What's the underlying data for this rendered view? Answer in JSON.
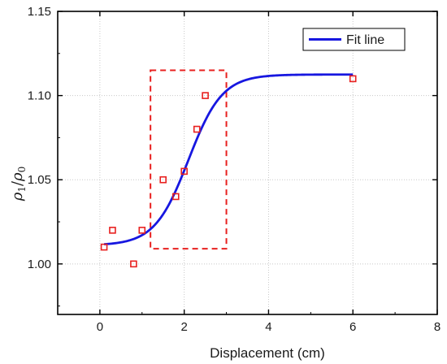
{
  "chart_data": {
    "type": "scatter",
    "xlabel": "Displacement (cm)",
    "ylabel": {
      "base": "ρ",
      "num_sub": "1",
      "den_sub": "0"
    },
    "xlim": [
      -1,
      8
    ],
    "ylim": [
      0.97,
      1.15
    ],
    "xticks": [
      0,
      2,
      4,
      6,
      8
    ],
    "xtick_labels": [
      "0",
      "2",
      "4",
      "6",
      "8"
    ],
    "yticks": [
      1.0,
      1.05,
      1.1,
      1.15
    ],
    "ytick_labels": [
      "1.00",
      "1.05",
      "1.10",
      "1.15"
    ],
    "grid": true,
    "legend_position": "top-right",
    "series": [
      {
        "kind": "points",
        "marker": "open-square",
        "color": "#e8201f",
        "points": [
          [
            0.1,
            1.01
          ],
          [
            0.3,
            1.02
          ],
          [
            0.8,
            1.0
          ],
          [
            1.0,
            1.02
          ],
          [
            1.5,
            1.05
          ],
          [
            1.8,
            1.04
          ],
          [
            2.0,
            1.055
          ],
          [
            2.3,
            1.08
          ],
          [
            2.5,
            1.1
          ],
          [
            6.0,
            1.11
          ]
        ]
      },
      {
        "kind": "line",
        "name": "Fit line",
        "color": "#1717e0",
        "model": {
          "type": "logistic",
          "y_low": 1.011,
          "y_high": 1.1125,
          "x_mid": 2.1,
          "width": 0.4
        },
        "x_range": [
          0.1,
          6.0
        ]
      }
    ],
    "annotations": [
      {
        "type": "dashed-rectangle",
        "color": "#e8201f",
        "x": [
          1.2,
          3.0
        ],
        "y": [
          1.009,
          1.115
        ]
      }
    ]
  }
}
